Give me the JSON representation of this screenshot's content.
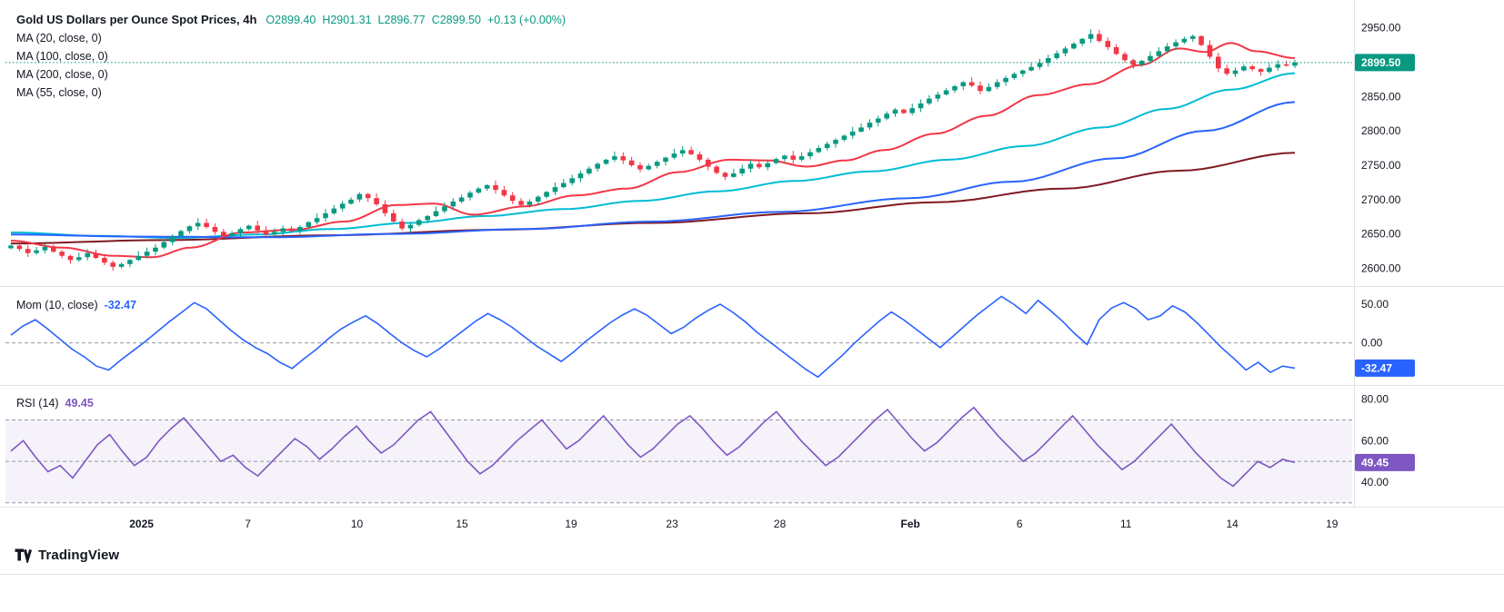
{
  "header": {
    "ohlc": {
      "o": "O2899.40",
      "h": "H2901.31",
      "l": "L2896.77",
      "c": "C2899.50",
      "chg": "+0.13 (+0.00%)"
    }
  },
  "footer": {
    "brand": "TradingView"
  },
  "colors": {
    "up": "#089981",
    "down": "#f23645",
    "axis_text": "#131722",
    "divider": "#e0e3eb",
    "level_dashed": "#9598a1",
    "rsi_band": "rgba(126,87,194,0.08)"
  },
  "chart_data": [
    {
      "type": "candlestick",
      "title": "Gold US Dollars per Ounce Spot Prices, 4h",
      "interval": "4h",
      "ohlc_display": {
        "open": 2899.4,
        "high": 2901.31,
        "low": 2896.77,
        "close": 2899.5,
        "change": "+0.13 (+0.00%)"
      },
      "last_price": 2899.5,
      "last_price_label": "2899.50",
      "ylim": [
        2578,
        2988
      ],
      "y_ticks": [
        2600,
        2650,
        2700,
        2750,
        2800,
        2850,
        2900,
        2950
      ],
      "closes": [
        2633,
        2628,
        2622,
        2626,
        2631,
        2624,
        2618,
        2612,
        2616,
        2622,
        2615,
        2608,
        2602,
        2606,
        2612,
        2618,
        2624,
        2630,
        2638,
        2646,
        2654,
        2661,
        2666,
        2660,
        2653,
        2647,
        2651,
        2657,
        2662,
        2655,
        2649,
        2653,
        2658,
        2654,
        2660,
        2667,
        2673,
        2680,
        2687,
        2694,
        2700,
        2708,
        2702,
        2693,
        2680,
        2668,
        2658,
        2663,
        2670,
        2676,
        2683,
        2690,
        2697,
        2703,
        2710,
        2716,
        2721,
        2714,
        2706,
        2698,
        2692,
        2697,
        2704,
        2711,
        2718,
        2724,
        2731,
        2738,
        2745,
        2752,
        2758,
        2763,
        2757,
        2750,
        2744,
        2749,
        2755,
        2761,
        2767,
        2772,
        2766,
        2758,
        2748,
        2739,
        2733,
        2738,
        2745,
        2752,
        2747,
        2753,
        2759,
        2764,
        2758,
        2763,
        2769,
        2775,
        2781,
        2787,
        2793,
        2799,
        2805,
        2812,
        2818,
        2825,
        2831,
        2826,
        2833,
        2840,
        2847,
        2853,
        2859,
        2865,
        2871,
        2866,
        2858,
        2864,
        2871,
        2877,
        2883,
        2888,
        2893,
        2899,
        2906,
        2913,
        2920,
        2927,
        2934,
        2941,
        2931,
        2922,
        2912,
        2903,
        2896,
        2902,
        2909,
        2916,
        2923,
        2929,
        2934,
        2938,
        2925,
        2908,
        2891,
        2883,
        2888,
        2894,
        2890,
        2886,
        2892,
        2897,
        2895,
        2899.5
      ],
      "overlays": [
        {
          "id": "ma-20-line",
          "name": "MA (20, close, 0)",
          "color": "#f23645",
          "points": [
            [
              0,
              2640
            ],
            [
              0.04,
              2630
            ],
            [
              0.08,
              2618
            ],
            [
              0.11,
              2616
            ],
            [
              0.14,
              2630
            ],
            [
              0.18,
              2652
            ],
            [
              0.22,
              2656
            ],
            [
              0.26,
              2668
            ],
            [
              0.3,
              2692
            ],
            [
              0.33,
              2694
            ],
            [
              0.36,
              2678
            ],
            [
              0.4,
              2690
            ],
            [
              0.44,
              2706
            ],
            [
              0.48,
              2716
            ],
            [
              0.52,
              2740
            ],
            [
              0.56,
              2758
            ],
            [
              0.59,
              2757
            ],
            [
              0.62,
              2748
            ],
            [
              0.65,
              2757
            ],
            [
              0.68,
              2772
            ],
            [
              0.72,
              2796
            ],
            [
              0.76,
              2822
            ],
            [
              0.8,
              2852
            ],
            [
              0.84,
              2868
            ],
            [
              0.88,
              2896
            ],
            [
              0.91,
              2920
            ],
            [
              0.93,
              2915
            ],
            [
              0.95,
              2928
            ],
            [
              0.97,
              2916
            ],
            [
              1.0,
              2906
            ]
          ]
        },
        {
          "id": "ma-100-line",
          "name": "MA (100, close, 0)",
          "color": "#2962ff",
          "points": [
            [
              0,
              2649
            ],
            [
              0.1,
              2646
            ],
            [
              0.2,
              2645
            ],
            [
              0.3,
              2650
            ],
            [
              0.4,
              2657
            ],
            [
              0.5,
              2668
            ],
            [
              0.6,
              2682
            ],
            [
              0.7,
              2702
            ],
            [
              0.78,
              2726
            ],
            [
              0.86,
              2760
            ],
            [
              0.93,
              2800
            ],
            [
              1.0,
              2842
            ]
          ]
        },
        {
          "id": "ma-200-line",
          "name": "MA (200, close, 0)",
          "color": "#801922",
          "points": [
            [
              0,
              2636
            ],
            [
              0.12,
              2641
            ],
            [
              0.25,
              2648
            ],
            [
              0.38,
              2656
            ],
            [
              0.5,
              2666
            ],
            [
              0.62,
              2680
            ],
            [
              0.72,
              2696
            ],
            [
              0.82,
              2716
            ],
            [
              0.91,
              2742
            ],
            [
              1.0,
              2768
            ]
          ]
        },
        {
          "id": "ma-55-line",
          "name": "MA (55, close, 0)",
          "color": "#00bcd4",
          "points": [
            [
              0,
              2652
            ],
            [
              0.07,
              2647
            ],
            [
              0.13,
              2644
            ],
            [
              0.19,
              2649
            ],
            [
              0.25,
              2657
            ],
            [
              0.31,
              2666
            ],
            [
              0.37,
              2676
            ],
            [
              0.43,
              2686
            ],
            [
              0.49,
              2698
            ],
            [
              0.55,
              2712
            ],
            [
              0.61,
              2727
            ],
            [
              0.67,
              2741
            ],
            [
              0.73,
              2758
            ],
            [
              0.79,
              2778
            ],
            [
              0.85,
              2805
            ],
            [
              0.9,
              2832
            ],
            [
              0.95,
              2860
            ],
            [
              1.0,
              2884
            ]
          ]
        }
      ],
      "x_ticks": [
        {
          "label": "2025",
          "pos": 0.101,
          "bold": true
        },
        {
          "label": "7",
          "pos": 0.18,
          "bold": false
        },
        {
          "label": "10",
          "pos": 0.261,
          "bold": false
        },
        {
          "label": "15",
          "pos": 0.339,
          "bold": false
        },
        {
          "label": "19",
          "pos": 0.42,
          "bold": false
        },
        {
          "label": "23",
          "pos": 0.495,
          "bold": false
        },
        {
          "label": "28",
          "pos": 0.575,
          "bold": false
        },
        {
          "label": "Feb",
          "pos": 0.672,
          "bold": true
        },
        {
          "label": "6",
          "pos": 0.753,
          "bold": false
        },
        {
          "label": "11",
          "pos": 0.832,
          "bold": false
        },
        {
          "label": "14",
          "pos": 0.911,
          "bold": false
        },
        {
          "label": "19",
          "pos": 0.985,
          "bold": false
        }
      ]
    },
    {
      "type": "line",
      "title": "Mom (10, close)",
      "value_display": "-32.47",
      "last_value": -32.47,
      "color": "#2962ff",
      "ylim": [
        -52,
        70
      ],
      "y_ticks": [
        0,
        50
      ],
      "zero_dashed": true,
      "values": [
        10,
        22,
        30,
        18,
        5,
        -8,
        -18,
        -30,
        -35,
        -22,
        -10,
        2,
        15,
        28,
        40,
        52,
        44,
        30,
        16,
        4,
        -6,
        -14,
        -25,
        -33,
        -20,
        -8,
        6,
        18,
        27,
        35,
        25,
        12,
        0,
        -10,
        -18,
        -8,
        4,
        16,
        28,
        38,
        30,
        20,
        8,
        -4,
        -14,
        -24,
        -12,
        2,
        14,
        26,
        36,
        44,
        36,
        24,
        12,
        20,
        32,
        42,
        50,
        40,
        28,
        14,
        2,
        -10,
        -22,
        -34,
        -44,
        -30,
        -16,
        0,
        14,
        28,
        40,
        30,
        18,
        6,
        -6,
        8,
        22,
        36,
        48,
        60,
        50,
        38,
        55,
        42,
        28,
        12,
        -2,
        30,
        45,
        52,
        44,
        30,
        35,
        48,
        40,
        26,
        10,
        -6,
        -20,
        -35,
        -25,
        -38,
        -30,
        -32.47
      ]
    },
    {
      "type": "line",
      "title": "RSI (14)",
      "value_display": "49.45",
      "last_value": 49.45,
      "color": "#7e57c2",
      "ylim": [
        29,
        86
      ],
      "y_ticks": [
        40,
        60,
        80
      ],
      "band": [
        30,
        70
      ],
      "levels_dashed": [
        30,
        50,
        70
      ],
      "values": [
        55,
        60,
        52,
        45,
        48,
        42,
        50,
        58,
        63,
        55,
        48,
        52,
        60,
        66,
        71,
        64,
        57,
        50,
        53,
        47,
        43,
        49,
        55,
        61,
        57,
        51,
        56,
        62,
        67,
        60,
        54,
        58,
        64,
        70,
        74,
        66,
        58,
        50,
        44,
        48,
        54,
        60,
        65,
        70,
        63,
        56,
        60,
        66,
        72,
        65,
        58,
        52,
        56,
        62,
        68,
        72,
        66,
        59,
        53,
        57,
        63,
        69,
        74,
        67,
        60,
        54,
        48,
        52,
        58,
        64,
        70,
        75,
        68,
        61,
        55,
        59,
        65,
        71,
        76,
        69,
        62,
        56,
        50,
        54,
        60,
        66,
        72,
        65,
        58,
        52,
        46,
        50,
        56,
        62,
        68,
        61,
        54,
        48,
        42,
        38,
        44,
        50,
        47,
        51,
        49.45
      ]
    }
  ]
}
